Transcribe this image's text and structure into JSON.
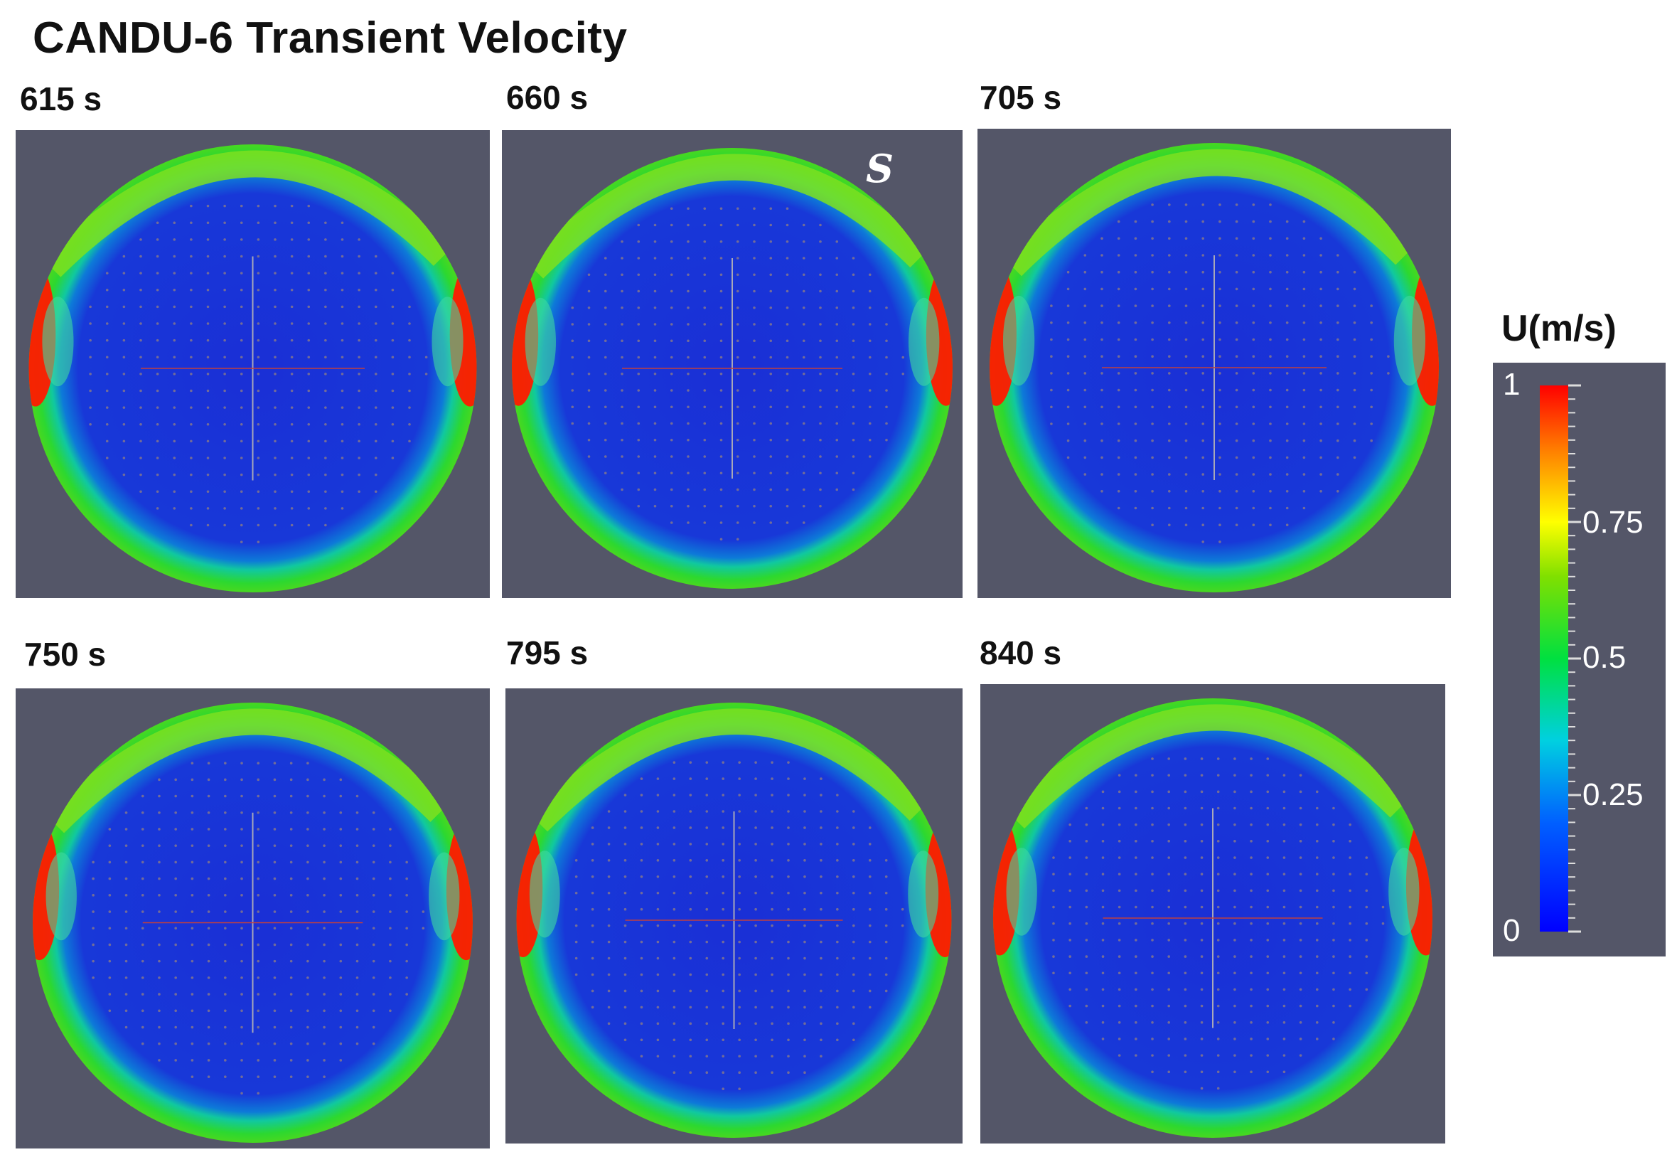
{
  "title": "CANDU-6 Transient Velocity",
  "panels": [
    {
      "time": "615 s"
    },
    {
      "time": "660 s"
    },
    {
      "time": "705 s"
    },
    {
      "time": "750 s"
    },
    {
      "time": "795 s"
    },
    {
      "time": "840 s"
    }
  ],
  "annotation": "S",
  "colorbar": {
    "title": "U(m/s)",
    "ticks": [
      "1",
      "0.75",
      "0.5",
      "0.25",
      "0"
    ],
    "colormap": [
      "#0000ff",
      "#00c8ff",
      "#00e040",
      "#ffff00",
      "#ff8000",
      "#ff0000"
    ]
  }
}
